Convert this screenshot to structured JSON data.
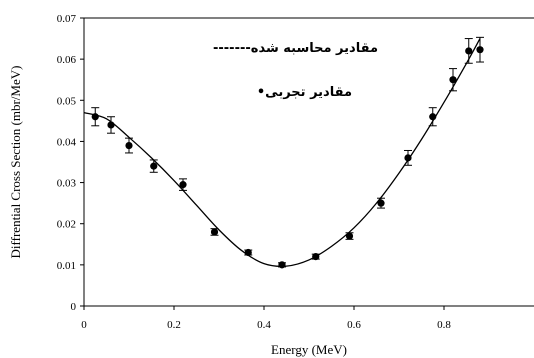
{
  "chart_data": {
    "type": "scatter",
    "title": "",
    "xlabel": "Energy (MeV)",
    "ylabel": "Diffrential Cross Section (mbr/MeV)",
    "xlim": [
      0,
      1.0
    ],
    "ylim": [
      0,
      0.07
    ],
    "x_ticks": [
      "0",
      "0.2",
      "0.4",
      "0.6",
      "0.8"
    ],
    "y_ticks": [
      "0",
      "0.01",
      "0.02",
      "0.03",
      "0.04",
      "0.05",
      "0.06",
      "0.07"
    ],
    "grid": false,
    "legend": [
      {
        "label": "مقادیر محاسبه شده-------",
        "style": "dashed line"
      },
      {
        "label": "مقادیر تجربی•",
        "style": "marker"
      }
    ],
    "series": [
      {
        "kind": "points",
        "x": [
          0.025,
          0.06,
          0.1,
          0.155,
          0.22,
          0.29,
          0.365,
          0.44,
          0.515,
          0.59,
          0.66,
          0.72,
          0.775,
          0.82,
          0.855,
          0.88
        ],
        "y": [
          0.046,
          0.044,
          0.039,
          0.034,
          0.0295,
          0.018,
          0.013,
          0.01,
          0.012,
          0.017,
          0.025,
          0.036,
          0.046,
          0.055,
          0.062,
          0.0623
        ],
        "err": [
          0.0022,
          0.002,
          0.0018,
          0.0015,
          0.0014,
          0.0008,
          0.0006,
          0.0005,
          0.0006,
          0.0008,
          0.0012,
          0.0018,
          0.0022,
          0.0027,
          0.003,
          0.003
        ]
      },
      {
        "kind": "curve",
        "x": [
          0.0,
          0.05,
          0.1,
          0.15,
          0.2,
          0.25,
          0.3,
          0.35,
          0.4,
          0.45,
          0.5,
          0.55,
          0.6,
          0.65,
          0.7,
          0.75,
          0.8,
          0.85,
          0.88
        ],
        "y": [
          0.047,
          0.0455,
          0.041,
          0.036,
          0.0305,
          0.0245,
          0.0185,
          0.0135,
          0.0103,
          0.0097,
          0.0112,
          0.0145,
          0.019,
          0.025,
          0.0323,
          0.0405,
          0.0495,
          0.059,
          0.065
        ]
      }
    ]
  }
}
